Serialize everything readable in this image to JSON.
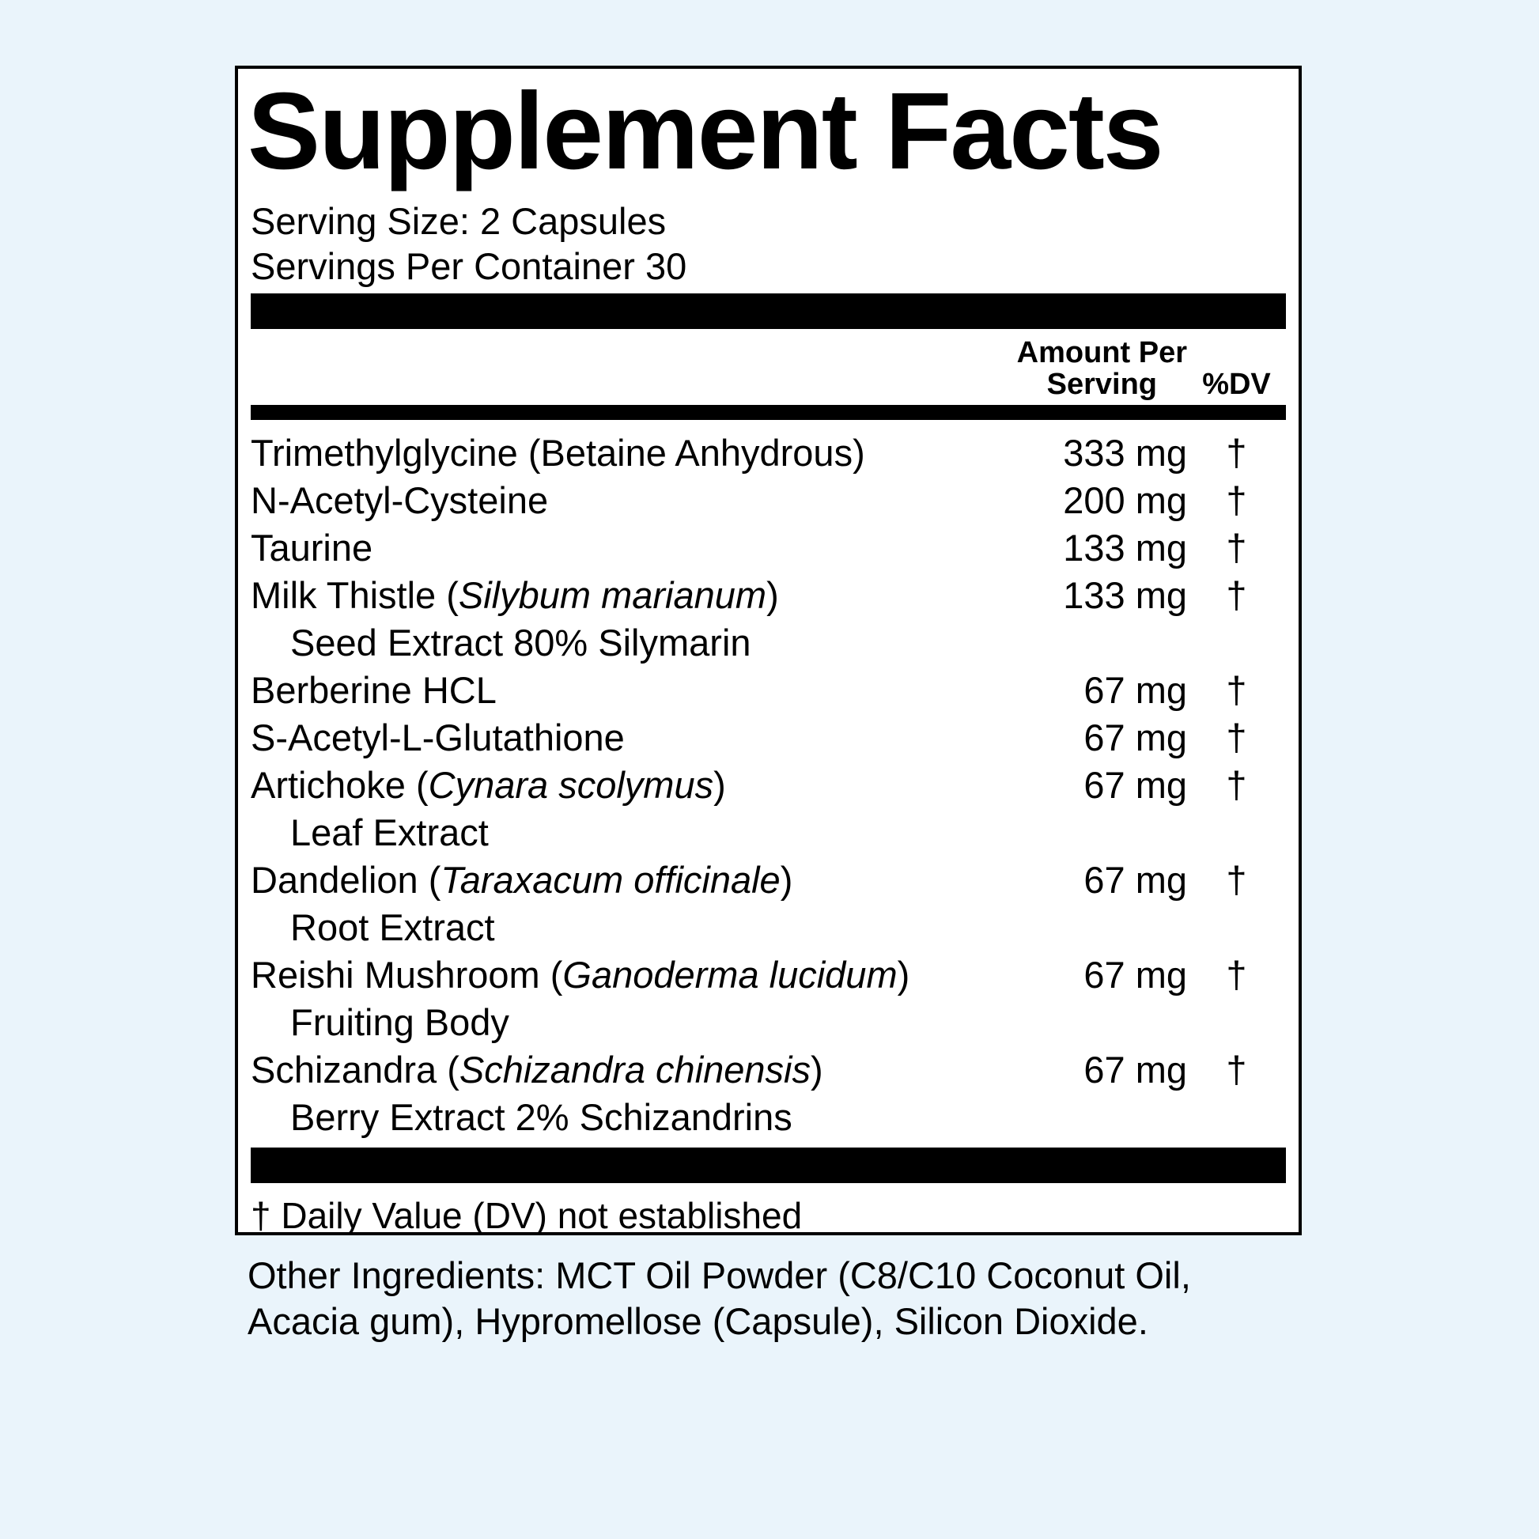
{
  "label": {
    "title": "Supplement Facts",
    "serving_size": "Serving Size: 2 Capsules",
    "servings_per_container": "Servings Per Container 30",
    "columns": {
      "amount_line1": "Amount Per",
      "amount_line2": "Serving",
      "dv": "%DV"
    },
    "rows": [
      {
        "prefix": "Trimethylglycine (Betaine Anhydrous)",
        "italic": "",
        "suffix": "",
        "sub": "",
        "amount": "333 mg",
        "dv": "†"
      },
      {
        "prefix": "N-Acetyl-Cysteine",
        "italic": "",
        "suffix": "",
        "sub": "",
        "amount": "200 mg",
        "dv": "†"
      },
      {
        "prefix": "Taurine",
        "italic": "",
        "suffix": "",
        "sub": "",
        "amount": "133 mg",
        "dv": "†"
      },
      {
        "prefix": "Milk Thistle (",
        "italic": "Silybum marianum",
        "suffix": ")",
        "sub": "Seed Extract 80% Silymarin",
        "amount": "133 mg",
        "dv": "†"
      },
      {
        "prefix": "Berberine HCL",
        "italic": "",
        "suffix": "",
        "sub": "",
        "amount": "67 mg",
        "dv": "†"
      },
      {
        "prefix": "S-Acetyl-L-Glutathione",
        "italic": "",
        "suffix": "",
        "sub": "",
        "amount": "67 mg",
        "dv": "†"
      },
      {
        "prefix": "Artichoke (",
        "italic": "Cynara scolymus",
        "suffix": ")",
        "sub": "Leaf Extract",
        "amount": "67 mg",
        "dv": "†"
      },
      {
        "prefix": "Dandelion (",
        "italic": "Taraxacum officinale",
        "suffix": ")",
        "sub": "Root Extract",
        "amount": "67 mg",
        "dv": "†"
      },
      {
        "prefix": "Reishi Mushroom (",
        "italic": "Ganoderma lucidum",
        "suffix": ")",
        "sub": "Fruiting Body",
        "amount": "67 mg",
        "dv": "†"
      },
      {
        "prefix": "Schizandra (",
        "italic": "Schizandra chinensis",
        "suffix": ")",
        "sub": "Berry Extract 2% Schizandrins",
        "amount": "67 mg",
        "dv": "†"
      }
    ],
    "footnote": "† Daily Value (DV) not established",
    "other_ingredients": "Other Ingredients: MCT Oil Powder (C8/C10 Coconut Oil, Acacia gum), Hypromellose (Capsule), Silicon Dioxide."
  },
  "colors": {
    "background": "#EAF4FB",
    "panel": "#FFFFFF",
    "text": "#000000",
    "bar": "#000000"
  }
}
